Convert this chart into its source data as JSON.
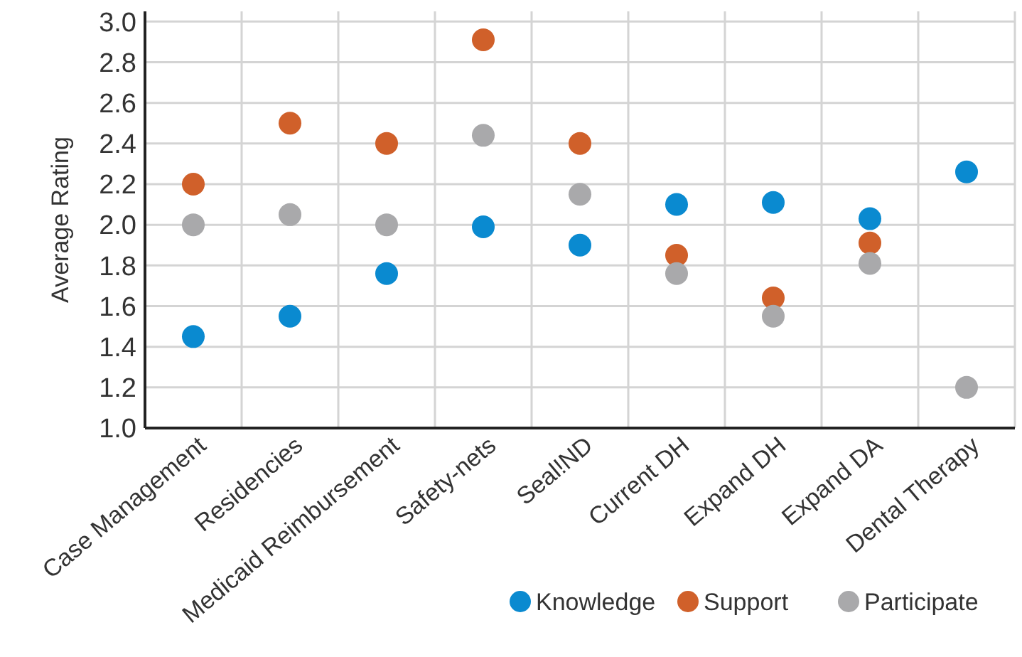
{
  "chart_data": {
    "type": "scatter",
    "ylabel": "Average Rating",
    "categories": [
      "Case Management",
      "Residencies",
      "Medicaid Reimbursement",
      "Safety-nets",
      "Seal!ND",
      "Current DH",
      "Expand DH",
      "Expand DA",
      "Dental Therapy"
    ],
    "series": [
      {
        "name": "Knowledge",
        "color": "#0a8ad0",
        "values": [
          1.45,
          1.55,
          1.76,
          1.99,
          1.9,
          2.1,
          2.11,
          2.03,
          2.26
        ]
      },
      {
        "name": "Support",
        "color": "#d0602a",
        "values": [
          2.2,
          2.5,
          2.4,
          2.91,
          2.4,
          1.85,
          1.64,
          1.91,
          null
        ]
      },
      {
        "name": "Participate",
        "color": "#a9a9ab",
        "values": [
          2.0,
          2.05,
          2.0,
          2.44,
          2.15,
          1.76,
          1.55,
          1.81,
          1.2
        ]
      }
    ],
    "ylim": [
      1.0,
      3.05
    ],
    "yticks": [
      {
        "value": 1,
        "label": "1.0"
      },
      {
        "value": 1.2,
        "label": "1.2"
      },
      {
        "value": 1.4,
        "label": "1.4"
      },
      {
        "value": 1.6,
        "label": "1.6"
      },
      {
        "value": 1.8,
        "label": "1.8"
      },
      {
        "value": 2,
        "label": "2.0"
      },
      {
        "value": 2.2,
        "label": "2.2"
      },
      {
        "value": 2.4,
        "label": "2.4"
      },
      {
        "value": 2.6,
        "label": "2.6"
      },
      {
        "value": 2.8,
        "label": "2.8"
      },
      {
        "value": 3,
        "label": "3.0"
      }
    ],
    "grid": true,
    "legend": "bottom right",
    "marker": "circle"
  }
}
